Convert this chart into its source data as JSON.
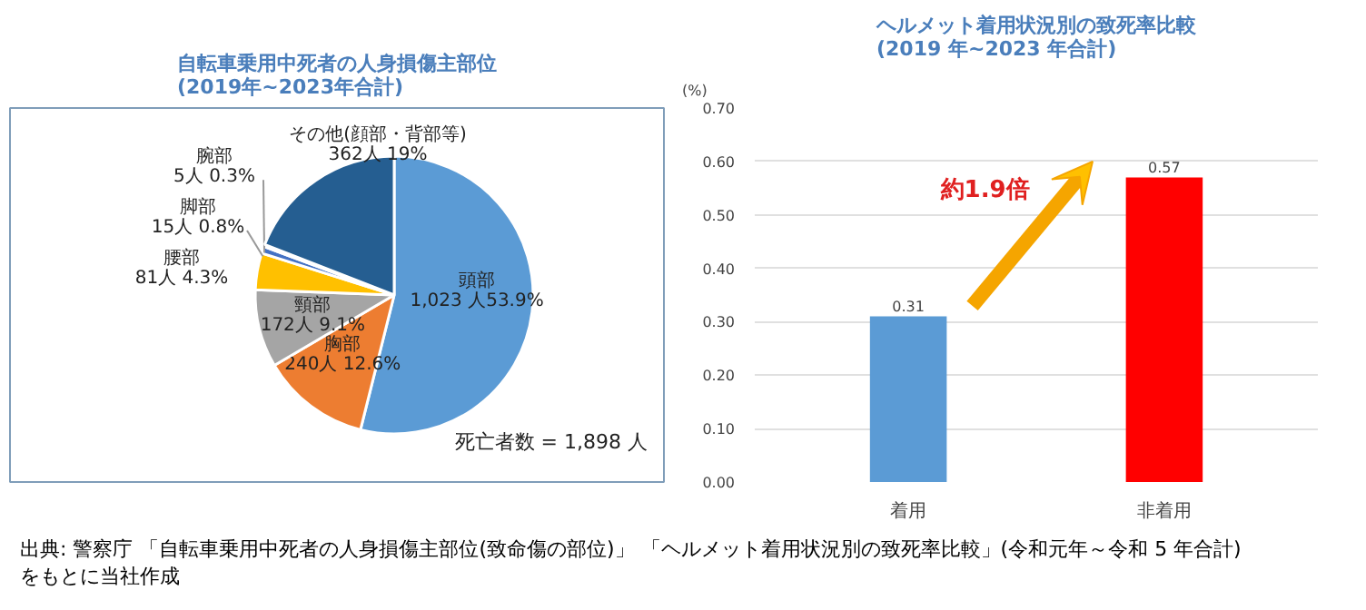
{
  "chart_data": [
    {
      "type": "pie",
      "title": "自転車乗用中死者の人身損傷主部位\n(2019年~2023年合計)",
      "categories": [
        "頭部",
        "胸部",
        "頸部",
        "腰部",
        "脚部",
        "腕部",
        "その他(顔部・背部等)"
      ],
      "values": [
        1023,
        240,
        172,
        81,
        15,
        5,
        362
      ],
      "colors": [
        "#5b9bd5",
        "#ed7d31",
        "#a5a5a5",
        "#ffc000",
        "#4472c4",
        "#70ad47",
        "#255e91"
      ],
      "value_labels": [
        "1,023 人53.9%",
        "240人 12.6%",
        "172人 9.1%",
        "81人 4.3%",
        "15人 0.8%",
        "5人 0.3%",
        "362人 19%"
      ],
      "annotations": [
        "死亡者数 = 1,898 人",
        "出典: 警察庁 「自転車乗用中死者の人身損傷主部位(致命傷の部位)」 「ヘルメット着用状況別の致死率比較」(令和元年～令和 5 年合計)",
        "をもとに当社作成"
      ]
    },
    {
      "type": "bar",
      "title": "ヘルメット着用状況別の致死率比較\n(2019 年~2023 年合計)",
      "ylabel": "(%)",
      "categories": [
        "着用",
        "非着用"
      ],
      "values": [
        0.31,
        0.57
      ],
      "colors": [
        "#5b9bd5",
        "#ff0000"
      ],
      "ylim": [
        0,
        0.7
      ],
      "yticks": [
        {
          "value": 0,
          "label": "0.00"
        },
        {
          "value": 0.1,
          "label": "0.10"
        },
        {
          "value": 0.2,
          "label": "0.20"
        },
        {
          "value": 0.3,
          "label": "0.30"
        },
        {
          "value": 0.4,
          "label": "0.40"
        },
        {
          "value": 0.5,
          "label": "0.50"
        },
        {
          "value": 0.6,
          "label": "0.60"
        },
        {
          "value": 0.7,
          "label": "0.70"
        }
      ],
      "grid": "y",
      "data_labels": true,
      "annotations": [
        "約1.9倍"
      ]
    }
  ]
}
